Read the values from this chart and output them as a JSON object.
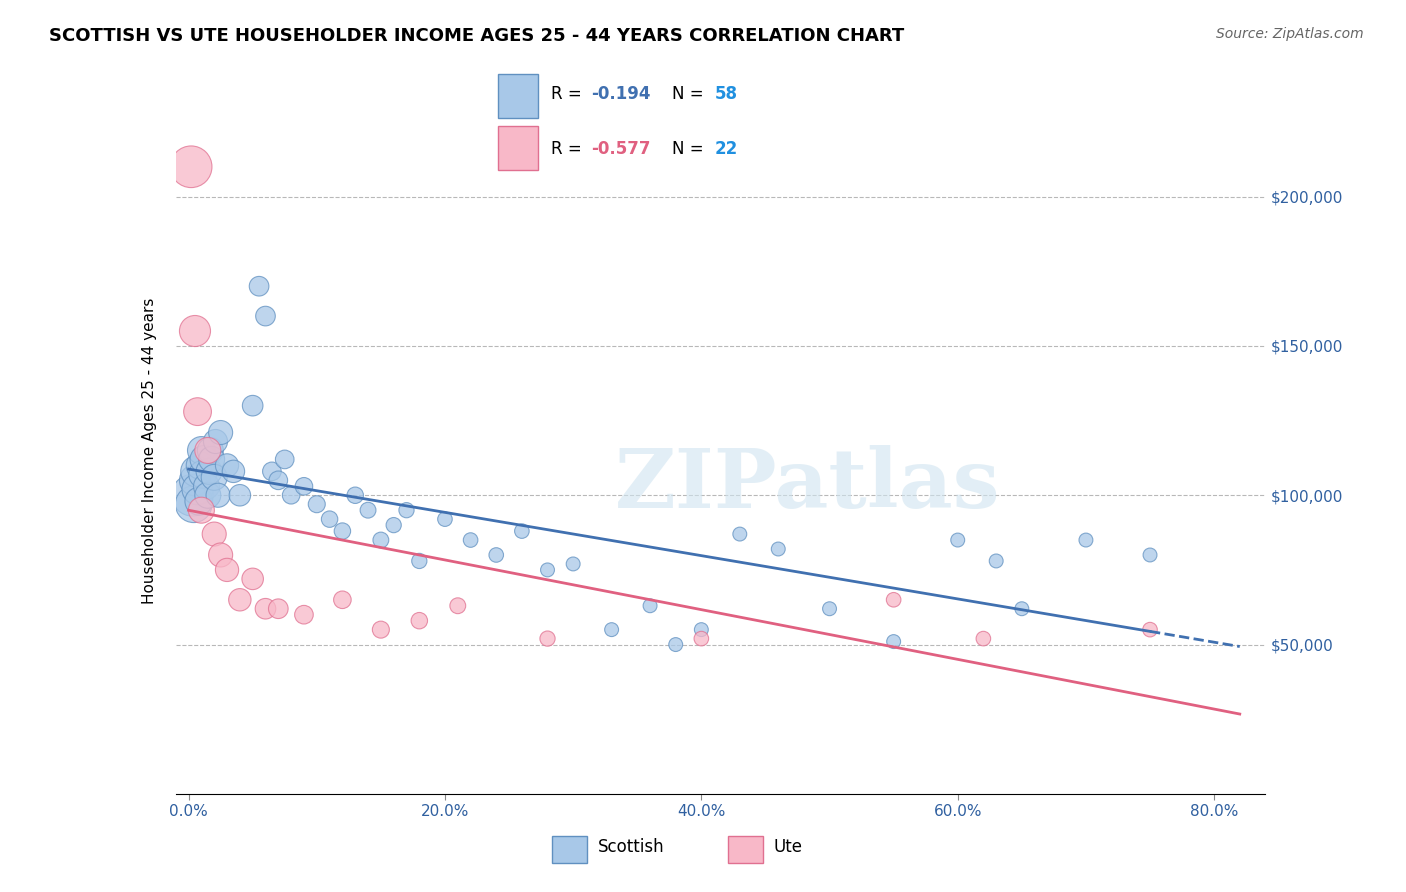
{
  "title": "SCOTTISH VS UTE HOUSEHOLDER INCOME AGES 25 - 44 YEARS CORRELATION CHART",
  "source": "Source: ZipAtlas.com",
  "ylabel": "Householder Income Ages 25 - 44 years",
  "xlabel_ticks": [
    "0.0%",
    "20.0%",
    "40.0%",
    "60.0%",
    "80.0%"
  ],
  "xlabel_vals": [
    0.0,
    20.0,
    40.0,
    60.0,
    80.0
  ],
  "ytick_labels": [
    "$50,000",
    "$100,000",
    "$150,000",
    "$200,000"
  ],
  "ytick_vals": [
    50000,
    100000,
    150000,
    200000
  ],
  "ylim": [
    0,
    230000
  ],
  "xlim": [
    -1,
    84
  ],
  "scottish_R": -0.194,
  "scottish_N": 58,
  "ute_R": -0.577,
  "ute_N": 22,
  "scottish_color": "#a8c8e8",
  "ute_color": "#f8b8c8",
  "scottish_edge_color": "#6090c0",
  "ute_edge_color": "#e07090",
  "scottish_line_color": "#4070b0",
  "ute_line_color": "#e06080",
  "watermark_color": "#d0e4f0",
  "scottish_x": [
    0.3,
    0.4,
    0.5,
    0.6,
    0.7,
    0.8,
    0.9,
    1.0,
    1.1,
    1.2,
    1.4,
    1.5,
    1.6,
    1.7,
    1.8,
    2.0,
    2.1,
    2.3,
    2.5,
    3.0,
    3.5,
    4.0,
    5.0,
    5.5,
    6.0,
    6.5,
    7.0,
    7.5,
    8.0,
    9.0,
    10.0,
    11.0,
    12.0,
    13.0,
    14.0,
    15.0,
    16.0,
    17.0,
    18.0,
    20.0,
    22.0,
    24.0,
    26.0,
    28.0,
    30.0,
    33.0,
    36.0,
    38.0,
    40.0,
    43.0,
    46.0,
    50.0,
    55.0,
    60.0,
    63.0,
    65.0,
    70.0,
    75.0
  ],
  "scottish_y": [
    100000,
    97000,
    105000,
    108000,
    102000,
    98000,
    110000,
    115000,
    107000,
    112000,
    103000,
    100000,
    108000,
    115000,
    112000,
    106000,
    118000,
    100000,
    121000,
    110000,
    108000,
    100000,
    130000,
    170000,
    160000,
    108000,
    105000,
    112000,
    100000,
    103000,
    97000,
    92000,
    88000,
    100000,
    95000,
    85000,
    90000,
    95000,
    78000,
    92000,
    85000,
    80000,
    88000,
    75000,
    77000,
    55000,
    63000,
    50000,
    55000,
    87000,
    82000,
    62000,
    51000,
    85000,
    78000,
    62000,
    85000,
    80000
  ],
  "scottish_sizes": [
    900,
    700,
    500,
    500,
    500,
    400,
    400,
    400,
    400,
    400,
    350,
    350,
    350,
    350,
    350,
    350,
    300,
    300,
    300,
    280,
    260,
    240,
    220,
    200,
    200,
    180,
    180,
    180,
    160,
    160,
    150,
    140,
    140,
    140,
    130,
    130,
    120,
    120,
    120,
    110,
    110,
    110,
    110,
    100,
    100,
    100,
    100,
    100,
    100,
    100,
    100,
    100,
    100,
    100,
    100,
    100,
    100,
    100
  ],
  "ute_x": [
    0.2,
    0.5,
    0.7,
    1.0,
    1.5,
    2.0,
    2.5,
    3.0,
    4.0,
    5.0,
    6.0,
    7.0,
    9.0,
    12.0,
    15.0,
    18.0,
    21.0,
    28.0,
    40.0,
    55.0,
    62.0,
    75.0
  ],
  "ute_y": [
    210000,
    155000,
    128000,
    95000,
    115000,
    87000,
    80000,
    75000,
    65000,
    72000,
    62000,
    62000,
    60000,
    65000,
    55000,
    58000,
    63000,
    52000,
    52000,
    65000,
    52000,
    55000
  ],
  "ute_sizes": [
    900,
    500,
    400,
    350,
    350,
    300,
    300,
    280,
    260,
    240,
    220,
    200,
    180,
    160,
    150,
    140,
    130,
    120,
    110,
    110,
    110,
    110
  ]
}
